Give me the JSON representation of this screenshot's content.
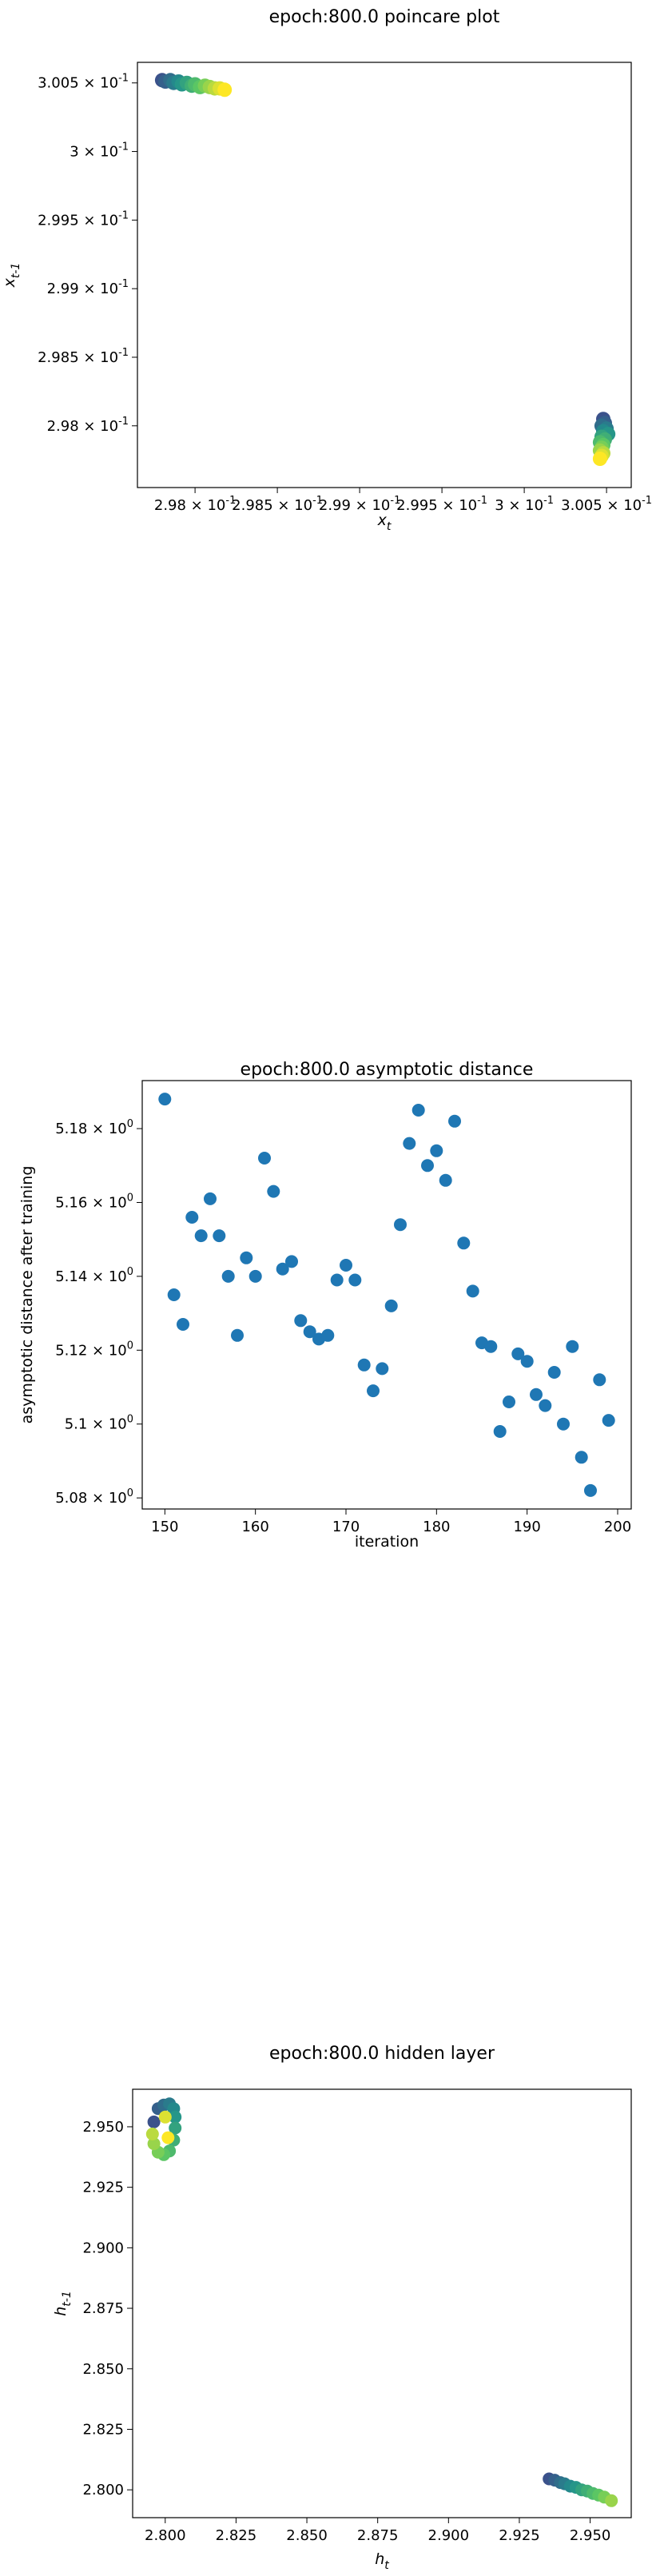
{
  "chart_data": [
    {
      "type": "scatter",
      "title": "epoch:800.0 poincare plot",
      "xlabel": "x_t",
      "ylabel": "x_{t-1}",
      "xlim": [
        0.29765,
        0.30065
      ],
      "ylim": [
        0.29755,
        0.30065
      ],
      "x_ticks": [
        0.298,
        0.2985,
        0.299,
        0.2995,
        0.3,
        0.3005
      ],
      "x_tick_labels": [
        "2.98 × 10^-1",
        "2.985 × 10^-1",
        "2.99 × 10^-1",
        "2.995 × 10^-1",
        "3 × 10^-1",
        "3.005 × 10^-1"
      ],
      "y_ticks": [
        0.298,
        0.2985,
        0.299,
        0.2995,
        0.3,
        0.3005
      ],
      "y_tick_labels": [
        "2.98 × 10^-1",
        "2.985 × 10^-1",
        "2.99 × 10^-1",
        "2.995 × 10^-1",
        "3 × 10^-1",
        "3.005 × 10^-1"
      ],
      "colormap": "viridis",
      "marker_color_range": [
        "#3b528b",
        "#fde725"
      ],
      "points": [
        {
          "x": 0.2978,
          "y": 0.30052
        },
        {
          "x": 0.29782,
          "y": 0.30051
        },
        {
          "x": 0.29785,
          "y": 0.30052
        },
        {
          "x": 0.29787,
          "y": 0.3005
        },
        {
          "x": 0.2979,
          "y": 0.30051
        },
        {
          "x": 0.29792,
          "y": 0.30049
        },
        {
          "x": 0.29795,
          "y": 0.3005
        },
        {
          "x": 0.29798,
          "y": 0.30048
        },
        {
          "x": 0.298,
          "y": 0.30049
        },
        {
          "x": 0.29803,
          "y": 0.30047
        },
        {
          "x": 0.29806,
          "y": 0.30048
        },
        {
          "x": 0.29809,
          "y": 0.30047
        },
        {
          "x": 0.29812,
          "y": 0.30046
        },
        {
          "x": 0.29815,
          "y": 0.30046
        },
        {
          "x": 0.29818,
          "y": 0.30045
        },
        {
          "x": 0.30048,
          "y": 0.29805
        },
        {
          "x": 0.30049,
          "y": 0.29802
        },
        {
          "x": 0.30047,
          "y": 0.298
        },
        {
          "x": 0.3005,
          "y": 0.29798
        },
        {
          "x": 0.30048,
          "y": 0.29796
        },
        {
          "x": 0.30051,
          "y": 0.29794
        },
        {
          "x": 0.30047,
          "y": 0.29792
        },
        {
          "x": 0.30049,
          "y": 0.2979
        },
        {
          "x": 0.30046,
          "y": 0.29788
        },
        {
          "x": 0.30048,
          "y": 0.29786
        },
        {
          "x": 0.30047,
          "y": 0.29784
        },
        {
          "x": 0.30046,
          "y": 0.29782
        },
        {
          "x": 0.30048,
          "y": 0.2978
        },
        {
          "x": 0.30047,
          "y": 0.29778
        },
        {
          "x": 0.30046,
          "y": 0.29776
        }
      ]
    },
    {
      "type": "scatter",
      "title": "epoch:800.0 asymptotic distance",
      "xlabel": "iteration",
      "ylabel": "asymptotic distance after training",
      "xlim": [
        147.5,
        201.5
      ],
      "ylim": [
        5.077,
        5.193
      ],
      "x_ticks": [
        150,
        160,
        170,
        180,
        190,
        200
      ],
      "x_tick_labels": [
        "150",
        "160",
        "170",
        "180",
        "190",
        "200"
      ],
      "y_ticks": [
        5.08,
        5.1,
        5.12,
        5.14,
        5.16,
        5.18
      ],
      "y_tick_labels": [
        "5.08 × 10^0",
        "5.1 × 10^0",
        "5.12 × 10^0",
        "5.14 × 10^0",
        "5.16 × 10^0",
        "5.18 × 10^0"
      ],
      "marker_color": "#1f77b4",
      "points": [
        {
          "x": 150,
          "y": 5.188
        },
        {
          "x": 151,
          "y": 5.135
        },
        {
          "x": 152,
          "y": 5.127
        },
        {
          "x": 153,
          "y": 5.156
        },
        {
          "x": 154,
          "y": 5.151
        },
        {
          "x": 155,
          "y": 5.161
        },
        {
          "x": 156,
          "y": 5.151
        },
        {
          "x": 157,
          "y": 5.14
        },
        {
          "x": 158,
          "y": 5.124
        },
        {
          "x": 159,
          "y": 5.145
        },
        {
          "x": 160,
          "y": 5.14
        },
        {
          "x": 161,
          "y": 5.172
        },
        {
          "x": 162,
          "y": 5.163
        },
        {
          "x": 163,
          "y": 5.142
        },
        {
          "x": 164,
          "y": 5.144
        },
        {
          "x": 165,
          "y": 5.128
        },
        {
          "x": 166,
          "y": 5.125
        },
        {
          "x": 167,
          "y": 5.123
        },
        {
          "x": 168,
          "y": 5.124
        },
        {
          "x": 169,
          "y": 5.139
        },
        {
          "x": 170,
          "y": 5.143
        },
        {
          "x": 171,
          "y": 5.139
        },
        {
          "x": 172,
          "y": 5.116
        },
        {
          "x": 173,
          "y": 5.109
        },
        {
          "x": 174,
          "y": 5.115
        },
        {
          "x": 175,
          "y": 5.132
        },
        {
          "x": 176,
          "y": 5.154
        },
        {
          "x": 177,
          "y": 5.176
        },
        {
          "x": 178,
          "y": 5.185
        },
        {
          "x": 179,
          "y": 5.17
        },
        {
          "x": 180,
          "y": 5.174
        },
        {
          "x": 181,
          "y": 5.166
        },
        {
          "x": 182,
          "y": 5.182
        },
        {
          "x": 183,
          "y": 5.149
        },
        {
          "x": 184,
          "y": 5.136
        },
        {
          "x": 185,
          "y": 5.122
        },
        {
          "x": 186,
          "y": 5.121
        },
        {
          "x": 187,
          "y": 5.098
        },
        {
          "x": 188,
          "y": 5.106
        },
        {
          "x": 189,
          "y": 5.119
        },
        {
          "x": 190,
          "y": 5.117
        },
        {
          "x": 191,
          "y": 5.108
        },
        {
          "x": 192,
          "y": 5.105
        },
        {
          "x": 193,
          "y": 5.114
        },
        {
          "x": 194,
          "y": 5.1
        },
        {
          "x": 195,
          "y": 5.121
        },
        {
          "x": 196,
          "y": 5.091
        },
        {
          "x": 197,
          "y": 5.082
        },
        {
          "x": 198,
          "y": 5.112
        },
        {
          "x": 199,
          "y": 5.101
        }
      ]
    },
    {
      "type": "scatter",
      "title": "epoch:800.0 hidden layer",
      "xlabel": "h_t",
      "ylabel": "h_{t-1}",
      "xlim": [
        2.7885,
        2.9645
      ],
      "ylim": [
        2.7885,
        2.9655
      ],
      "x_ticks": [
        2.8,
        2.825,
        2.85,
        2.875,
        2.9,
        2.925,
        2.95
      ],
      "x_tick_labels": [
        "2.800",
        "2.825",
        "2.850",
        "2.875",
        "2.900",
        "2.925",
        "2.950"
      ],
      "y_ticks": [
        2.8,
        2.825,
        2.85,
        2.875,
        2.9,
        2.925,
        2.95
      ],
      "y_tick_labels": [
        "2.800",
        "2.825",
        "2.850",
        "2.875",
        "2.900",
        "2.925",
        "2.950"
      ],
      "colormap": "viridis",
      "marker_color_range": [
        "#3b528b",
        "#fde725"
      ],
      "points": [
        {
          "x": 2.796,
          "y": 2.952
        },
        {
          "x": 2.7975,
          "y": 2.9575
        },
        {
          "x": 2.7995,
          "y": 2.959
        },
        {
          "x": 2.8015,
          "y": 2.9595
        },
        {
          "x": 2.803,
          "y": 2.9575
        },
        {
          "x": 2.8035,
          "y": 2.954
        },
        {
          "x": 2.8035,
          "y": 2.9495
        },
        {
          "x": 2.803,
          "y": 2.9445
        },
        {
          "x": 2.8015,
          "y": 2.94
        },
        {
          "x": 2.7995,
          "y": 2.9385
        },
        {
          "x": 2.7975,
          "y": 2.9395
        },
        {
          "x": 2.796,
          "y": 2.943
        },
        {
          "x": 2.7955,
          "y": 2.947
        },
        {
          "x": 2.8,
          "y": 2.954
        },
        {
          "x": 2.801,
          "y": 2.9455
        },
        {
          "x": 2.9355,
          "y": 2.8045
        },
        {
          "x": 2.9375,
          "y": 2.804
        },
        {
          "x": 2.9395,
          "y": 2.803
        },
        {
          "x": 2.941,
          "y": 2.8025
        },
        {
          "x": 2.943,
          "y": 2.8015
        },
        {
          "x": 2.945,
          "y": 2.801
        },
        {
          "x": 2.947,
          "y": 2.8
        },
        {
          "x": 2.949,
          "y": 2.7995
        },
        {
          "x": 2.951,
          "y": 2.7985
        },
        {
          "x": 2.953,
          "y": 2.7978
        },
        {
          "x": 2.955,
          "y": 2.797
        },
        {
          "x": 2.9575,
          "y": 2.7955
        }
      ]
    }
  ]
}
